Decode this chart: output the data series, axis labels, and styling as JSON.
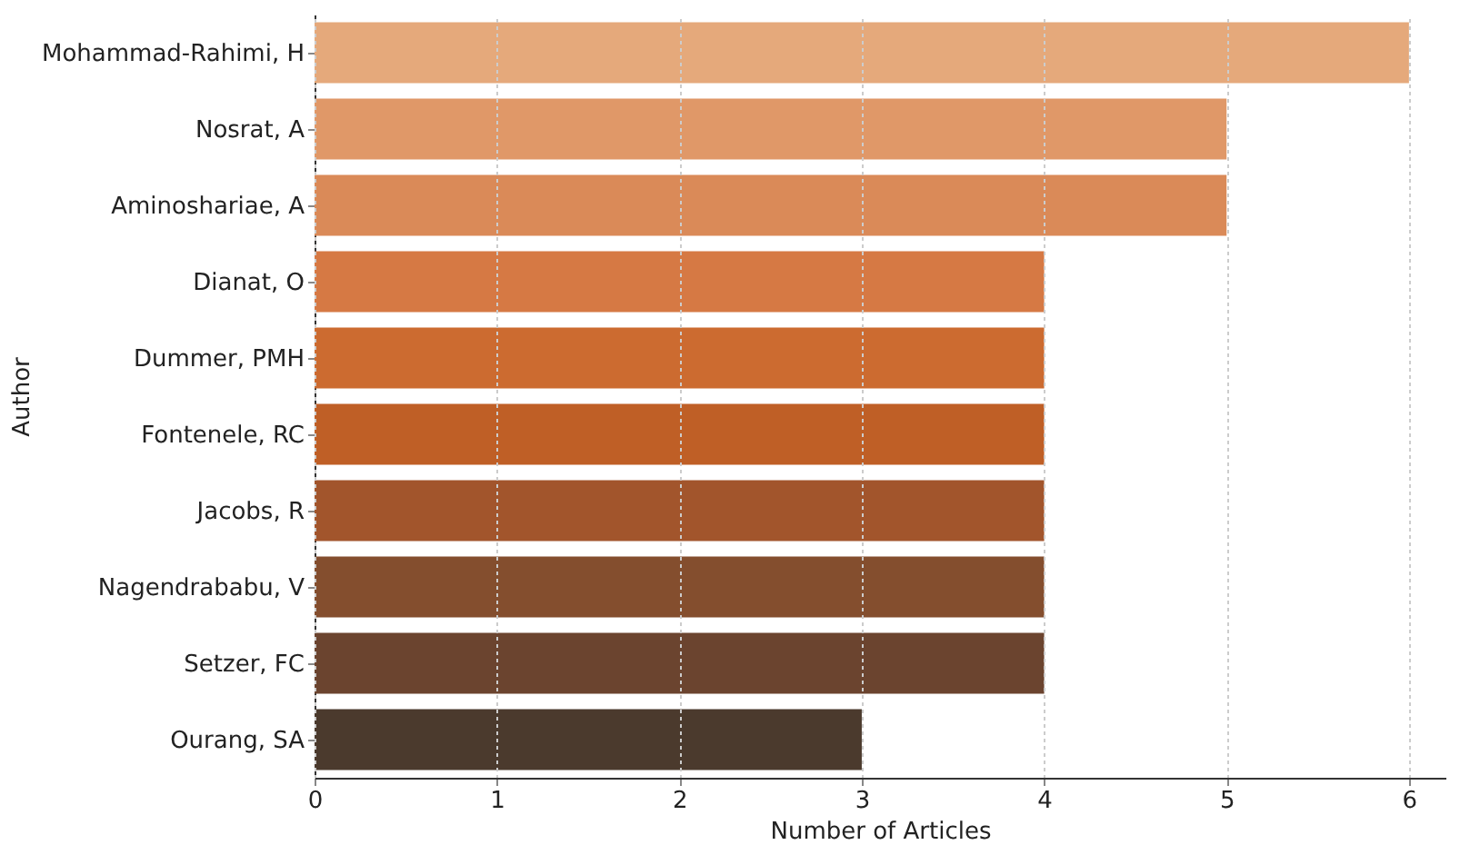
{
  "chart_data": {
    "type": "bar",
    "orientation": "horizontal",
    "xlabel": "Number of Articles",
    "ylabel": "Author",
    "categories": [
      "Mohammad-Rahimi, H",
      "Nosrat, A",
      "Aminoshariae, A",
      "Dianat, O",
      "Dummer, PMH",
      "Fontenele, RC",
      "Jacobs, R",
      "Nagendrababu, V",
      "Setzer, FC",
      "Ourang, SA"
    ],
    "values": [
      6,
      5,
      5,
      4,
      4,
      4,
      4,
      4,
      4,
      3
    ],
    "colors": [
      "#e5a97b",
      "#e09868",
      "#da8a58",
      "#d67944",
      "#cc6b30",
      "#bf5f26",
      "#a2552c",
      "#844e2e",
      "#6b442f",
      "#4b3a2d"
    ],
    "xlim": [
      0,
      6.2
    ],
    "xticks": [
      0,
      1,
      2,
      3,
      4,
      5,
      6
    ],
    "grid": "x"
  }
}
